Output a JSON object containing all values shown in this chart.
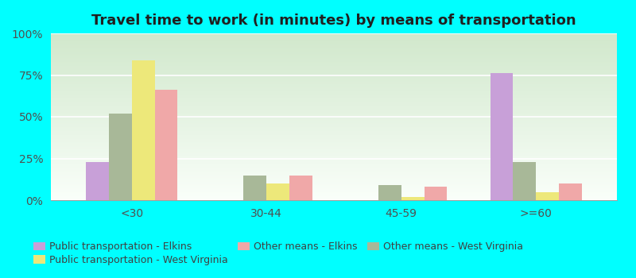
{
  "title": "Travel time to work (in minutes) by means of transportation",
  "categories": [
    "<30",
    "30-44",
    "45-59",
    ">=60"
  ],
  "series": [
    {
      "label": "Public transportation - Elkins",
      "color": "#c8a0d8",
      "values": [
        23,
        0,
        0,
        76
      ]
    },
    {
      "label": "Public transportation - West Virginia",
      "color": "#a8b898",
      "values": [
        52,
        15,
        9,
        23
      ]
    },
    {
      "label": "Other means - Elkins",
      "color": "#ede87a",
      "values": [
        84,
        10,
        2,
        5
      ]
    },
    {
      "label": "Other means - West Virginia",
      "color": "#f0a8a8",
      "values": [
        66,
        15,
        8,
        10
      ]
    }
  ],
  "legend_order": [
    0,
    2,
    1,
    3
  ],
  "legend_labels": [
    "Public transportation - Elkins",
    "Public transportation - West Virginia",
    "Other means - Elkins",
    "Other means - West Virginia"
  ],
  "ylim": [
    0,
    100
  ],
  "yticks": [
    0,
    25,
    50,
    75,
    100
  ],
  "ytick_labels": [
    "0%",
    "25%",
    "50%",
    "75%",
    "100%"
  ],
  "background_color": "#00ffff",
  "bar_width": 0.17,
  "title_fontsize": 13
}
